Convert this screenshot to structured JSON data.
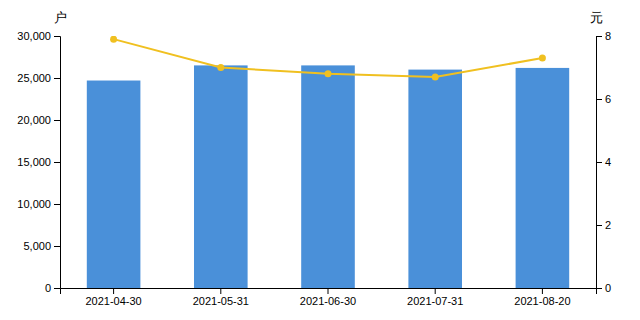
{
  "chart_data": {
    "type": "bar",
    "categories": [
      "2021-04-30",
      "2021-05-31",
      "2021-06-30",
      "2021-07-31",
      "2021-08-20"
    ],
    "series": [
      {
        "type": "bar",
        "color": "#4A90D9",
        "values": [
          24700,
          26500,
          26500,
          26000,
          26200
        ]
      },
      {
        "type": "line",
        "axis": "y2",
        "color": "#F0C020",
        "marker": "circle",
        "values": [
          7.9,
          7.0,
          6.8,
          6.7,
          7.3
        ]
      }
    ],
    "ylabel": "户",
    "y2label": "元",
    "ylim": [
      0,
      30000
    ],
    "yticks": [
      0,
      {
        "value": 5000,
        "label": "5,000"
      },
      {
        "value": 10000,
        "label": "10,000"
      },
      {
        "value": 15000,
        "label": "15,000"
      },
      {
        "value": 20000,
        "label": "20,000"
      },
      {
        "value": 25000,
        "label": "25,000"
      },
      {
        "value": 30000,
        "label": "30,000"
      }
    ],
    "y2lim": [
      0,
      8
    ],
    "y2ticks": [
      0,
      2,
      4,
      6,
      8
    ],
    "grid": false
  }
}
